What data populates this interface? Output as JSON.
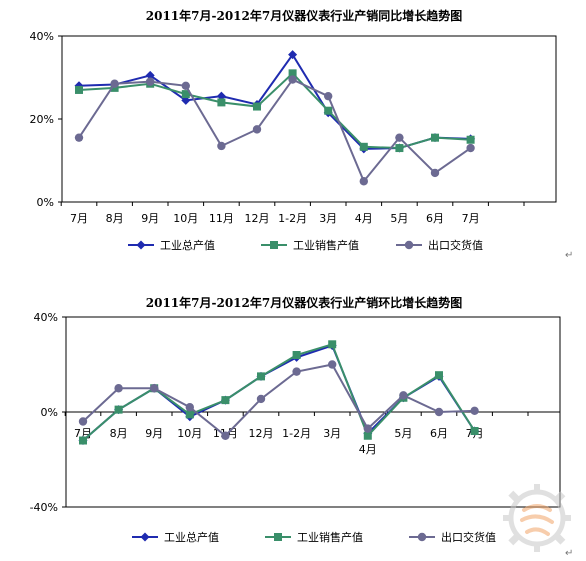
{
  "chart_data": [
    {
      "type": "line",
      "title": "2011年7月-2012年7月仪器仪表行业产销同比增长趋势图",
      "categories": [
        "7月",
        "8月",
        "9月",
        "10月",
        "11月",
        "12月",
        "1-2月",
        "3月",
        "4月",
        "5月",
        "6月",
        "7月"
      ],
      "ylim": [
        0,
        40
      ],
      "yticks": [
        "0%",
        "20%",
        "40%"
      ],
      "grid": false,
      "legend_position": "bottom",
      "series": [
        {
          "name": "工业总产值",
          "color": "#1f2bb0",
          "marker": "diamond",
          "values": [
            28,
            28.3,
            30.5,
            24.5,
            25.5,
            23.5,
            35.5,
            21.5,
            12.8,
            13,
            15.5,
            15.2
          ]
        },
        {
          "name": "工业销售产值",
          "color": "#3a8f6a",
          "marker": "square",
          "values": [
            27,
            27.5,
            28.5,
            26,
            24,
            23,
            31,
            22,
            13.3,
            13,
            15.5,
            15
          ]
        },
        {
          "name": "出口交货值",
          "color": "#6c6a92",
          "marker": "circle",
          "values": [
            15.5,
            28.5,
            29,
            28,
            13.5,
            17.5,
            29.5,
            25.5,
            5,
            15.5,
            7,
            13
          ]
        }
      ]
    },
    {
      "type": "line",
      "title": "2011年7月-2012年7月仪器仪表行业产销环比增长趋势图",
      "categories": [
        "7月",
        "8月",
        "9月",
        "10月",
        "11月",
        "12月",
        "1-2月",
        "3月",
        "4月",
        "5月",
        "6月",
        "7月"
      ],
      "ylim": [
        -40,
        40
      ],
      "yticks": [
        "-40%",
        "0%",
        "40%"
      ],
      "grid": false,
      "legend_position": "bottom",
      "series": [
        {
          "name": "工业总产值",
          "color": "#1f2bb0",
          "marker": "diamond",
          "values": [
            -12,
            1,
            10,
            -2,
            5,
            15,
            23,
            28,
            -9,
            6,
            15,
            -8
          ]
        },
        {
          "name": "工业销售产值",
          "color": "#3a8f6a",
          "marker": "square",
          "values": [
            -12,
            1,
            10,
            -1,
            5,
            15,
            24,
            28.5,
            -10,
            6,
            15.5,
            -8
          ]
        },
        {
          "name": "出口交货值",
          "color": "#6c6a92",
          "marker": "circle",
          "values": [
            -4,
            10,
            10,
            2,
            -10,
            5.5,
            17,
            20,
            -7,
            7,
            0,
            0.5
          ]
        }
      ]
    }
  ]
}
